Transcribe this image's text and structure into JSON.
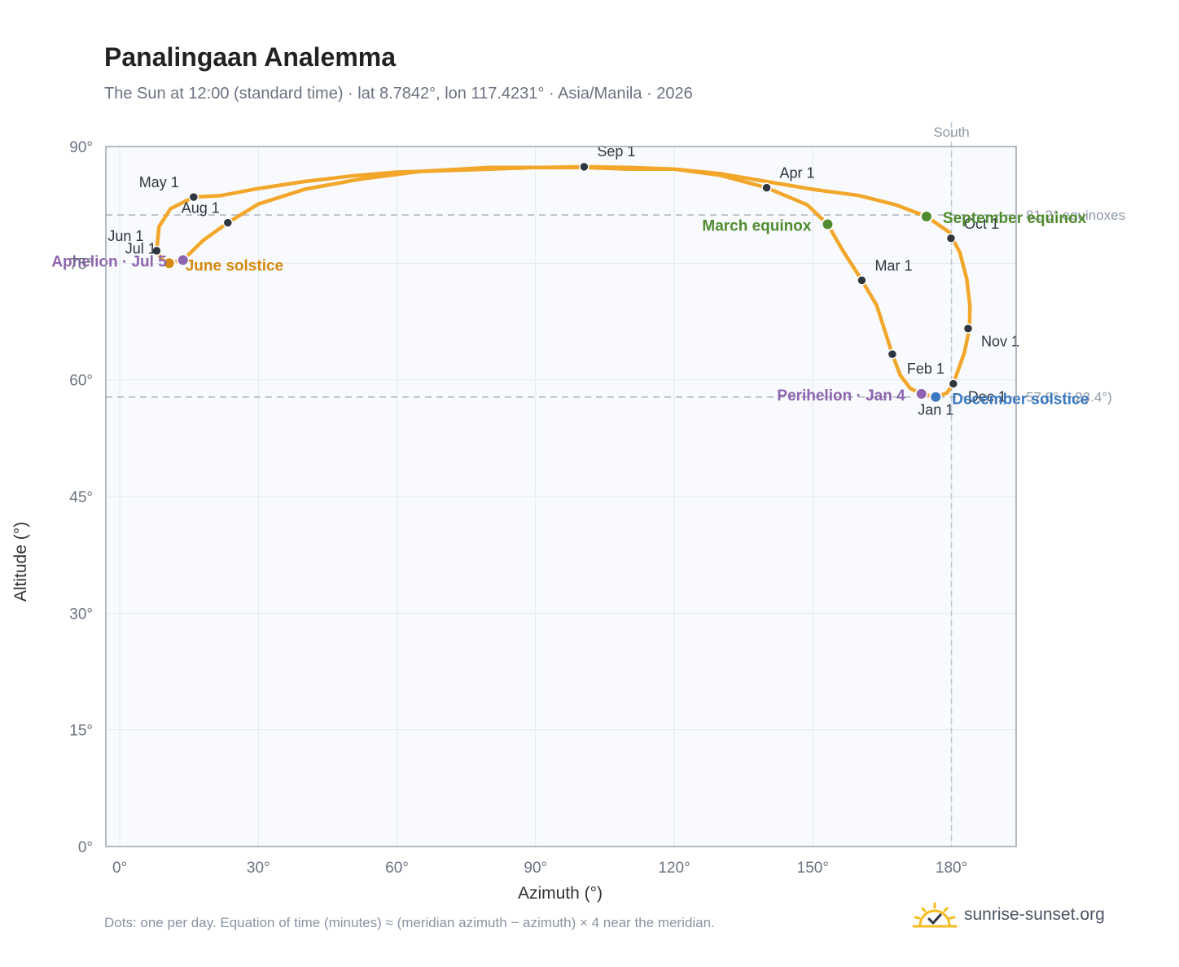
{
  "title": "Panalingaan Analemma",
  "subtitle": "The Sun at 12:00 (standard time) · lat 8.7842°, lon 117.4231° · Asia/Manila · 2026",
  "footnote": "Dots: one per day. Equation of time (minutes) ≈ (meridian azimuth − azimuth) × 4 near the meridian.",
  "brand": {
    "name": "sunrise-sunset.org",
    "icon": "sun-check-icon",
    "color": "#f5bd1f"
  },
  "chart_data": {
    "type": "scatter",
    "xlabel": "Azimuth (°)",
    "ylabel": "Altitude (°)",
    "xlim": [
      -3,
      194
    ],
    "ylim": [
      0,
      90
    ],
    "xticks": [
      0,
      30,
      60,
      90,
      120,
      150,
      180
    ],
    "yticks": [
      0,
      15,
      30,
      45,
      60,
      75,
      90
    ],
    "tick_suffix": "°",
    "grid": true,
    "colors": {
      "path": "#f2a72b",
      "month": "#2f3640",
      "equinox": "#4f8b2e",
      "solstice_june": "#d48a12",
      "solstice_december": "#3b78c2",
      "apsis": "#8e64b0",
      "ref": "#a9b2bd",
      "south": "#b9c8d6",
      "plot_bg": "#f8fafd"
    },
    "south_line": {
      "x": 180,
      "label": "South"
    },
    "ref_lines": [
      {
        "y": 81.2,
        "label": "81.2° equinoxes"
      },
      {
        "y": 57.8,
        "label": "57.8° (−23.4°)"
      }
    ],
    "path": [
      [
        176.6,
        57.8
      ],
      [
        173.5,
        58.2
      ],
      [
        171.1,
        58.9
      ],
      [
        168.9,
        60.6
      ],
      [
        167.2,
        63.3
      ],
      [
        165.6,
        66.3
      ],
      [
        163.8,
        69.6
      ],
      [
        160.6,
        72.8
      ],
      [
        156.5,
        76.6
      ],
      [
        153.2,
        80.0
      ],
      [
        148.8,
        82.5
      ],
      [
        140.0,
        84.7
      ],
      [
        130.0,
        86.3
      ],
      [
        120.0,
        87.1
      ],
      [
        110.0,
        87.1
      ],
      [
        100.5,
        87.3
      ],
      [
        90.0,
        87.3
      ],
      [
        75.0,
        87.0
      ],
      [
        60.0,
        86.7
      ],
      [
        50.0,
        86.2
      ],
      [
        40.0,
        85.5
      ],
      [
        30.0,
        84.6
      ],
      [
        22.0,
        83.7
      ],
      [
        16.0,
        83.5
      ],
      [
        11.0,
        82.0
      ],
      [
        8.5,
        79.7
      ],
      [
        8.0,
        76.6
      ],
      [
        9.0,
        75.6
      ],
      [
        10.7,
        75.0
      ],
      [
        12.5,
        75.3
      ],
      [
        13.7,
        75.4
      ],
      [
        18.0,
        77.9
      ],
      [
        23.4,
        80.2
      ],
      [
        30.0,
        82.6
      ],
      [
        40.0,
        84.5
      ],
      [
        52.0,
        85.8
      ],
      [
        65.0,
        86.8
      ],
      [
        80.0,
        87.3
      ],
      [
        92.0,
        87.3
      ],
      [
        100.5,
        87.4
      ],
      [
        110.0,
        87.3
      ],
      [
        120.0,
        87.1
      ],
      [
        130.0,
        86.5
      ],
      [
        140.0,
        85.5
      ],
      [
        150.0,
        84.5
      ],
      [
        160.0,
        83.7
      ],
      [
        168.0,
        82.5
      ],
      [
        174.6,
        81.0
      ],
      [
        179.5,
        79.0
      ],
      [
        181.8,
        76.4
      ],
      [
        183.3,
        73.0
      ],
      [
        184.0,
        69.5
      ],
      [
        183.9,
        66.6
      ],
      [
        182.8,
        63.5
      ],
      [
        180.4,
        59.5
      ],
      [
        179.0,
        58.3
      ],
      [
        176.6,
        57.8
      ]
    ],
    "months": [
      {
        "label": "Jan 1",
        "x": 176.6,
        "y": 57.8
      },
      {
        "label": "Feb 1",
        "x": 167.2,
        "y": 63.3
      },
      {
        "label": "Mar 1",
        "x": 160.6,
        "y": 72.8
      },
      {
        "label": "Apr 1",
        "x": 140.0,
        "y": 84.7
      },
      {
        "label": "May 1",
        "x": 16.0,
        "y": 83.5
      },
      {
        "label": "Jun 1",
        "x": 8.0,
        "y": 76.6
      },
      {
        "label": "Jul 1",
        "x": 10.7,
        "y": 75.0
      },
      {
        "label": "Aug 1",
        "x": 23.4,
        "y": 80.2
      },
      {
        "label": "Sep 1",
        "x": 100.5,
        "y": 87.4
      },
      {
        "label": "Oct 1",
        "x": 179.9,
        "y": 78.2
      },
      {
        "label": "Nov 1",
        "x": 183.6,
        "y": 66.6
      },
      {
        "label": "Dec 1",
        "x": 180.4,
        "y": 59.5
      }
    ],
    "events": [
      {
        "label": "March equinox",
        "x": 153.2,
        "y": 80.0,
        "kind": "equinox"
      },
      {
        "label": "September equinox",
        "x": 174.6,
        "y": 81.0,
        "kind": "equinox"
      },
      {
        "label": "June solstice",
        "x": 10.7,
        "y": 75.0,
        "kind": "solstice_june"
      },
      {
        "label": "December solstice",
        "x": 176.6,
        "y": 57.8,
        "kind": "solstice_december"
      },
      {
        "label": "Aphelion · Jul 5",
        "x": 13.7,
        "y": 75.4,
        "kind": "apsis"
      },
      {
        "label": "Perihelion · Jan 4",
        "x": 173.5,
        "y": 58.2,
        "kind": "apsis"
      }
    ]
  }
}
